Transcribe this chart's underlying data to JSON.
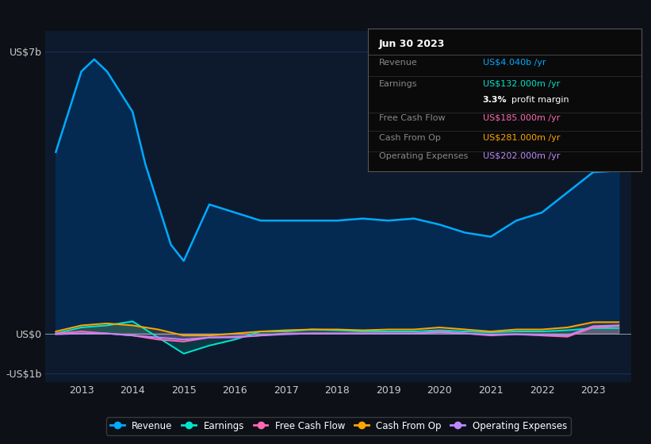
{
  "background_color": "#0d1117",
  "plot_bg_color": "#0d1a2e",
  "ylim": [
    -1200000000.0,
    7500000000.0
  ],
  "legend_items": [
    {
      "label": "Revenue",
      "color": "#00aaff"
    },
    {
      "label": "Earnings",
      "color": "#00e5cc"
    },
    {
      "label": "Free Cash Flow",
      "color": "#ff69b4"
    },
    {
      "label": "Cash From Op",
      "color": "#ffa500"
    },
    {
      "label": "Operating Expenses",
      "color": "#bb88ff"
    }
  ],
  "info_box": {
    "date": "Jun 30 2023",
    "rows": [
      {
        "label": "Revenue",
        "value": "US$4.040b /yr",
        "value_color": "#00aaff"
      },
      {
        "label": "Earnings",
        "value": "US$132.000m /yr",
        "value_color": "#00e5cc"
      },
      {
        "label": "",
        "value": "3.3% profit margin",
        "value_color": "#ffffff"
      },
      {
        "label": "Free Cash Flow",
        "value": "US$185.000m /yr",
        "value_color": "#ff69b4"
      },
      {
        "label": "Cash From Op",
        "value": "US$281.000m /yr",
        "value_color": "#ffa500"
      },
      {
        "label": "Operating Expenses",
        "value": "US$202.000m /yr",
        "value_color": "#bb88ff"
      }
    ]
  },
  "revenue": {
    "x": [
      2012.5,
      2013.0,
      2013.25,
      2013.5,
      2013.75,
      2014.0,
      2014.25,
      2014.5,
      2014.75,
      2015.0,
      2015.25,
      2015.5,
      2016.0,
      2016.5,
      2017.0,
      2017.5,
      2018.0,
      2018.5,
      2019.0,
      2019.5,
      2020.0,
      2020.5,
      2021.0,
      2021.5,
      2022.0,
      2022.5,
      2023.0,
      2023.5
    ],
    "y": [
      4500000000,
      6500000000,
      6800000000,
      6500000000,
      6000000000,
      5500000000,
      4200000000,
      3200000000,
      2200000000,
      1800000000,
      2500000000,
      3200000000,
      3000000000,
      2800000000,
      2800000000,
      2800000000,
      2800000000,
      2850000000,
      2800000000,
      2850000000,
      2700000000,
      2500000000,
      2400000000,
      2800000000,
      3000000000,
      3500000000,
      4000000000,
      4040000000
    ],
    "color": "#00aaff",
    "fill_color": "#003366",
    "fill_alpha": 0.65
  },
  "earnings": {
    "x": [
      2012.5,
      2013.0,
      2013.5,
      2014.0,
      2014.5,
      2015.0,
      2015.5,
      2016.0,
      2016.5,
      2017.0,
      2017.5,
      2018.0,
      2018.5,
      2019.0,
      2019.5,
      2020.0,
      2020.5,
      2021.0,
      2021.5,
      2022.0,
      2022.5,
      2023.0,
      2023.5
    ],
    "y": [
      0,
      150000000,
      200000000,
      300000000,
      -100000000,
      -500000000,
      -300000000,
      -150000000,
      50000000,
      50000000,
      100000000,
      80000000,
      50000000,
      50000000,
      50000000,
      80000000,
      50000000,
      30000000,
      50000000,
      50000000,
      80000000,
      130000000,
      132000000
    ],
    "color": "#00e5cc",
    "fill_color": "#00e5cc",
    "fill_alpha": 0.15
  },
  "free_cash_flow": {
    "x": [
      2012.5,
      2013.0,
      2013.5,
      2014.0,
      2014.5,
      2015.0,
      2015.5,
      2016.0,
      2016.5,
      2017.0,
      2017.5,
      2018.0,
      2018.5,
      2019.0,
      2019.5,
      2020.0,
      2020.5,
      2021.0,
      2021.5,
      2022.0,
      2022.5,
      2023.0,
      2023.5
    ],
    "y": [
      0,
      50000000,
      0,
      -50000000,
      -150000000,
      -200000000,
      -100000000,
      -100000000,
      -50000000,
      0,
      0,
      0,
      0,
      0,
      0,
      50000000,
      0,
      -50000000,
      -20000000,
      -50000000,
      -80000000,
      150000000,
      185000000
    ],
    "color": "#ff69b4",
    "fill_color": "#ff69b4",
    "fill_alpha": 0.15
  },
  "cash_from_op": {
    "x": [
      2012.5,
      2013.0,
      2013.5,
      2014.0,
      2014.5,
      2015.0,
      2015.5,
      2016.0,
      2016.5,
      2017.0,
      2017.5,
      2018.0,
      2018.5,
      2019.0,
      2019.5,
      2020.0,
      2020.5,
      2021.0,
      2021.5,
      2022.0,
      2022.5,
      2023.0,
      2023.5
    ],
    "y": [
      50000000,
      200000000,
      250000000,
      200000000,
      100000000,
      -50000000,
      -50000000,
      0,
      50000000,
      80000000,
      100000000,
      100000000,
      80000000,
      100000000,
      100000000,
      150000000,
      100000000,
      50000000,
      100000000,
      100000000,
      150000000,
      280000000,
      281000000
    ],
    "color": "#ffa500",
    "fill_color": "#ffa500",
    "fill_alpha": 0.15
  },
  "operating_expenses": {
    "x": [
      2012.5,
      2013.0,
      2013.5,
      2014.0,
      2014.5,
      2015.0,
      2015.5,
      2016.0,
      2016.5,
      2017.0,
      2017.5,
      2018.0,
      2018.5,
      2019.0,
      2019.5,
      2020.0,
      2020.5,
      2021.0,
      2021.5,
      2022.0,
      2022.5,
      2023.0,
      2023.5
    ],
    "y": [
      -20000000,
      0,
      0,
      -50000000,
      -100000000,
      -150000000,
      -100000000,
      -80000000,
      -50000000,
      -20000000,
      0,
      0,
      0,
      0,
      0,
      30000000,
      0,
      -30000000,
      -20000000,
      -30000000,
      -50000000,
      180000000,
      202000000
    ],
    "color": "#bb88ff",
    "fill_color": "#bb88ff",
    "fill_alpha": 0.15
  }
}
